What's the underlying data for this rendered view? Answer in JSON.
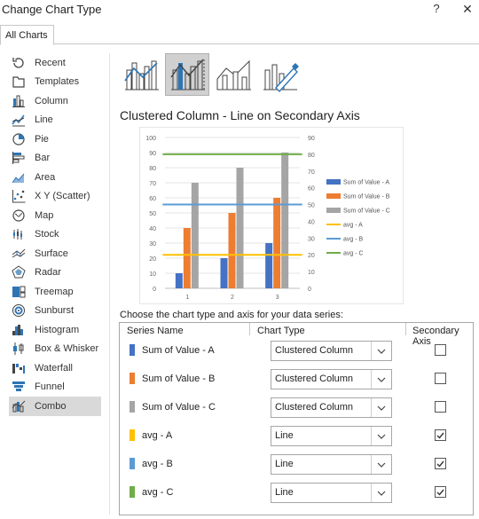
{
  "dialog": {
    "title": "Change Chart Type",
    "help": "?",
    "close": "✕"
  },
  "tabs": [
    {
      "label": "All Charts"
    }
  ],
  "sidebar": {
    "items": [
      {
        "label": "Recent",
        "icon": "recent-icon"
      },
      {
        "label": "Templates",
        "icon": "templates-icon"
      },
      {
        "label": "Column",
        "icon": "column-icon"
      },
      {
        "label": "Line",
        "icon": "line-icon"
      },
      {
        "label": "Pie",
        "icon": "pie-icon"
      },
      {
        "label": "Bar",
        "icon": "bar-icon"
      },
      {
        "label": "Area",
        "icon": "area-icon"
      },
      {
        "label": "X Y (Scatter)",
        "icon": "scatter-icon"
      },
      {
        "label": "Map",
        "icon": "map-icon"
      },
      {
        "label": "Stock",
        "icon": "stock-icon"
      },
      {
        "label": "Surface",
        "icon": "surface-icon"
      },
      {
        "label": "Radar",
        "icon": "radar-icon"
      },
      {
        "label": "Treemap",
        "icon": "treemap-icon"
      },
      {
        "label": "Sunburst",
        "icon": "sunburst-icon"
      },
      {
        "label": "Histogram",
        "icon": "histogram-icon"
      },
      {
        "label": "Box & Whisker",
        "icon": "box-whisker-icon"
      },
      {
        "label": "Waterfall",
        "icon": "waterfall-icon"
      },
      {
        "label": "Funnel",
        "icon": "funnel-icon"
      },
      {
        "label": "Combo",
        "icon": "combo-icon"
      }
    ],
    "selected": "Combo"
  },
  "subtypes": [
    {
      "icon": "clustered-column-line-icon",
      "selected": false
    },
    {
      "icon": "clustered-column-line-secondary-icon",
      "selected": true
    },
    {
      "icon": "stacked-area-clustered-column-icon",
      "selected": false
    },
    {
      "icon": "custom-combination-icon",
      "selected": false
    }
  ],
  "combo_title": "Clustered Column - Line on Secondary Axis",
  "chart_data": {
    "type": "bar",
    "categories": [
      "1",
      "2",
      "3"
    ],
    "ylim": [
      0,
      100
    ],
    "yticks": [
      "100",
      "90",
      "80",
      "70",
      "60",
      "50",
      "40",
      "30",
      "20",
      "10",
      "0"
    ],
    "y2lim": [
      0,
      90
    ],
    "y2ticks": [
      "90",
      "80",
      "70",
      "60",
      "50",
      "40",
      "30",
      "20",
      "10",
      "0"
    ],
    "series": [
      {
        "name": "Sum of Value - A",
        "kind": "column",
        "axis": "primary",
        "color": "#4472c4",
        "values": [
          10,
          20,
          30
        ]
      },
      {
        "name": "Sum of Value - B",
        "kind": "column",
        "axis": "primary",
        "color": "#ed7d31",
        "values": [
          40,
          50,
          60
        ]
      },
      {
        "name": "Sum of Value - C",
        "kind": "column",
        "axis": "primary",
        "color": "#a5a5a5",
        "values": [
          70,
          80,
          90
        ]
      },
      {
        "name": "avg - A",
        "kind": "line",
        "axis": "secondary",
        "color": "#ffc000",
        "values": [
          20,
          20,
          20
        ]
      },
      {
        "name": "avg - B",
        "kind": "line",
        "axis": "secondary",
        "color": "#5b9bd5",
        "values": [
          50,
          50,
          50
        ]
      },
      {
        "name": "avg - C",
        "kind": "line",
        "axis": "secondary",
        "color": "#70ad47",
        "values": [
          80,
          80,
          80
        ]
      }
    ],
    "legend": "right"
  },
  "choose_label": "Choose the chart type and axis for your data series:",
  "table": {
    "headers": {
      "name": "Series Name",
      "type": "Chart Type",
      "secondary": "Secondary Axis"
    },
    "rows": [
      {
        "name": "Sum of Value - A",
        "color": "#4472c4",
        "chart_type": "Clustered Column",
        "secondary": false
      },
      {
        "name": "Sum of Value - B",
        "color": "#ed7d31",
        "chart_type": "Clustered Column",
        "secondary": false
      },
      {
        "name": "Sum of Value - C",
        "color": "#a5a5a5",
        "chart_type": "Clustered Column",
        "secondary": false
      },
      {
        "name": "avg - A",
        "color": "#ffc000",
        "chart_type": "Line",
        "secondary": true
      },
      {
        "name": "avg - B",
        "color": "#5b9bd5",
        "chart_type": "Line",
        "secondary": true
      },
      {
        "name": "avg - C",
        "color": "#70ad47",
        "chart_type": "Line",
        "secondary": true
      }
    ]
  }
}
